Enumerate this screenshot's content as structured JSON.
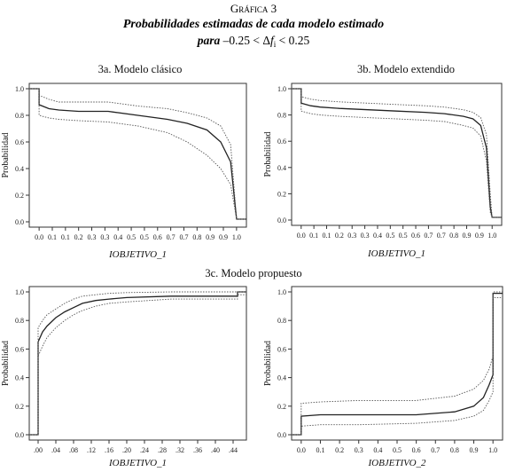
{
  "figure": {
    "label_main": "Gráfica",
    "label_num": "3",
    "subtitle": "Probabilidades estimadas de cada modelo estimado",
    "condition_italic": "para",
    "condition_rest_a": " –0.25 < Δ",
    "condition_f": "f",
    "condition_sub": "i",
    "condition_rest_b": " < 0.25",
    "section_c_title": "3c. Modelo propuesto"
  },
  "chart_data": [
    {
      "id": "3a",
      "type": "line",
      "title": "3a. Modelo clásico",
      "xlabel": "IOBJETIVO_1",
      "ylabel": "Probabilidad",
      "x_ticks": [
        "0.0",
        "0.1",
        "0.1",
        "0.2",
        "0.3",
        "0.3",
        "0.4",
        "0.5",
        "0.5",
        "0.6",
        "0.7",
        "0.7",
        "0.8",
        "0.9",
        "0.9",
        "1.0"
      ],
      "y_ticks": [
        "0.0",
        "0.2",
        "0.4",
        "0.6",
        "0.8",
        "1.0"
      ],
      "xlim": [
        -0.05,
        1.05
      ],
      "ylim": [
        0,
        1
      ],
      "series": [
        {
          "style": "solid",
          "points": [
            [
              -0.05,
              1.0
            ],
            [
              0.0,
              1.0
            ],
            [
              0.0,
              0.88
            ],
            [
              0.05,
              0.85
            ],
            [
              0.1,
              0.84
            ],
            [
              0.2,
              0.83
            ],
            [
              0.35,
              0.83
            ],
            [
              0.5,
              0.8
            ],
            [
              0.65,
              0.77
            ],
            [
              0.75,
              0.74
            ],
            [
              0.85,
              0.69
            ],
            [
              0.92,
              0.6
            ],
            [
              0.97,
              0.45
            ],
            [
              1.0,
              0.02
            ],
            [
              1.05,
              0.02
            ]
          ]
        },
        {
          "style": "dotted",
          "points": [
            [
              -0.05,
              1.0
            ],
            [
              0.0,
              1.0
            ],
            [
              0.0,
              0.95
            ],
            [
              0.05,
              0.92
            ],
            [
              0.1,
              0.9
            ],
            [
              0.2,
              0.9
            ],
            [
              0.35,
              0.9
            ],
            [
              0.5,
              0.87
            ],
            [
              0.65,
              0.85
            ],
            [
              0.75,
              0.82
            ],
            [
              0.85,
              0.78
            ],
            [
              0.92,
              0.72
            ],
            [
              0.97,
              0.58
            ],
            [
              1.0,
              0.02
            ],
            [
              1.05,
              0.02
            ]
          ]
        },
        {
          "style": "dotted",
          "points": [
            [
              -0.05,
              1.0
            ],
            [
              0.0,
              1.0
            ],
            [
              0.0,
              0.8
            ],
            [
              0.05,
              0.78
            ],
            [
              0.1,
              0.77
            ],
            [
              0.2,
              0.76
            ],
            [
              0.35,
              0.75
            ],
            [
              0.5,
              0.72
            ],
            [
              0.65,
              0.67
            ],
            [
              0.75,
              0.6
            ],
            [
              0.85,
              0.5
            ],
            [
              0.92,
              0.4
            ],
            [
              0.97,
              0.28
            ],
            [
              1.0,
              0.02
            ],
            [
              1.05,
              0.02
            ]
          ]
        }
      ]
    },
    {
      "id": "3b",
      "type": "line",
      "title": "3b. Modelo extendido",
      "xlabel": "IOBJETIVO_1",
      "ylabel": "Probabilidad",
      "x_ticks": [
        "0.0",
        "0.1",
        "0.1",
        "0.2",
        "0.3",
        "0.3",
        "0.4",
        "0.5",
        "0.5",
        "0.6",
        "0.7",
        "0.7",
        "0.8",
        "0.9",
        "0.9",
        "1.0"
      ],
      "y_ticks": [
        "0.0",
        "0.2",
        "0.4",
        "0.6",
        "0.8",
        "1.0"
      ],
      "xlim": [
        -0.05,
        1.05
      ],
      "ylim": [
        0,
        1
      ],
      "series": [
        {
          "style": "solid",
          "points": [
            [
              -0.05,
              1.0
            ],
            [
              0.0,
              1.0
            ],
            [
              0.0,
              0.89
            ],
            [
              0.05,
              0.87
            ],
            [
              0.1,
              0.86
            ],
            [
              0.2,
              0.85
            ],
            [
              0.35,
              0.84
            ],
            [
              0.5,
              0.83
            ],
            [
              0.65,
              0.82
            ],
            [
              0.75,
              0.81
            ],
            [
              0.85,
              0.79
            ],
            [
              0.9,
              0.77
            ],
            [
              0.94,
              0.72
            ],
            [
              0.97,
              0.55
            ],
            [
              0.99,
              0.1
            ],
            [
              1.0,
              0.02
            ],
            [
              1.05,
              0.02
            ]
          ]
        },
        {
          "style": "dotted",
          "points": [
            [
              -0.05,
              1.0
            ],
            [
              0.0,
              1.0
            ],
            [
              0.0,
              0.94
            ],
            [
              0.05,
              0.92
            ],
            [
              0.1,
              0.91
            ],
            [
              0.2,
              0.9
            ],
            [
              0.35,
              0.89
            ],
            [
              0.5,
              0.88
            ],
            [
              0.65,
              0.87
            ],
            [
              0.75,
              0.86
            ],
            [
              0.85,
              0.84
            ],
            [
              0.9,
              0.82
            ],
            [
              0.94,
              0.78
            ],
            [
              0.97,
              0.65
            ],
            [
              0.99,
              0.2
            ],
            [
              1.0,
              0.02
            ],
            [
              1.05,
              0.02
            ]
          ]
        },
        {
          "style": "dotted",
          "points": [
            [
              -0.05,
              1.0
            ],
            [
              0.0,
              1.0
            ],
            [
              0.0,
              0.83
            ],
            [
              0.05,
              0.81
            ],
            [
              0.1,
              0.8
            ],
            [
              0.2,
              0.79
            ],
            [
              0.35,
              0.78
            ],
            [
              0.5,
              0.77
            ],
            [
              0.65,
              0.76
            ],
            [
              0.75,
              0.75
            ],
            [
              0.85,
              0.72
            ],
            [
              0.9,
              0.7
            ],
            [
              0.94,
              0.64
            ],
            [
              0.97,
              0.45
            ],
            [
              0.99,
              0.06
            ],
            [
              1.0,
              0.02
            ],
            [
              1.05,
              0.02
            ]
          ]
        }
      ]
    },
    {
      "id": "3c-left",
      "type": "line",
      "title": "",
      "xlabel": "IOBJETIVO_1",
      "ylabel": "Probabilidad",
      "x_ticks": [
        ".00",
        ".04",
        ".08",
        ".12",
        ".16",
        ".20",
        ".24",
        ".28",
        ".32",
        ".36",
        ".40",
        ".44"
      ],
      "y_ticks": [
        "0.0",
        "0.2",
        "0.4",
        "0.6",
        "0.8",
        "1.0"
      ],
      "xlim": [
        -0.02,
        0.47
      ],
      "ylim": [
        0,
        1
      ],
      "series": [
        {
          "style": "solid",
          "points": [
            [
              -0.02,
              0.0
            ],
            [
              0.0,
              0.0
            ],
            [
              0.0,
              0.65
            ],
            [
              0.01,
              0.72
            ],
            [
              0.02,
              0.76
            ],
            [
              0.04,
              0.82
            ],
            [
              0.06,
              0.86
            ],
            [
              0.08,
              0.89
            ],
            [
              0.1,
              0.92
            ],
            [
              0.13,
              0.94
            ],
            [
              0.16,
              0.95
            ],
            [
              0.2,
              0.96
            ],
            [
              0.3,
              0.97
            ],
            [
              0.45,
              0.97
            ],
            [
              0.45,
              1.0
            ],
            [
              0.47,
              1.0
            ]
          ]
        },
        {
          "style": "dotted",
          "points": [
            [
              -0.02,
              0.0
            ],
            [
              0.0,
              0.0
            ],
            [
              0.0,
              0.75
            ],
            [
              0.01,
              0.8
            ],
            [
              0.02,
              0.84
            ],
            [
              0.04,
              0.88
            ],
            [
              0.06,
              0.92
            ],
            [
              0.08,
              0.95
            ],
            [
              0.1,
              0.97
            ],
            [
              0.13,
              0.98
            ],
            [
              0.16,
              0.99
            ],
            [
              0.2,
              0.995
            ],
            [
              0.3,
              1.0
            ],
            [
              0.47,
              1.0
            ]
          ]
        },
        {
          "style": "dotted",
          "points": [
            [
              -0.02,
              0.0
            ],
            [
              0.0,
              0.0
            ],
            [
              0.0,
              0.55
            ],
            [
              0.01,
              0.62
            ],
            [
              0.02,
              0.68
            ],
            [
              0.04,
              0.75
            ],
            [
              0.06,
              0.8
            ],
            [
              0.08,
              0.84
            ],
            [
              0.1,
              0.87
            ],
            [
              0.13,
              0.9
            ],
            [
              0.16,
              0.92
            ],
            [
              0.2,
              0.93
            ],
            [
              0.3,
              0.95
            ],
            [
              0.45,
              0.95
            ],
            [
              0.45,
              0.98
            ],
            [
              0.47,
              0.98
            ]
          ]
        }
      ]
    },
    {
      "id": "3c-right",
      "type": "line",
      "title": "",
      "xlabel": "IOBJETIVO_2",
      "ylabel": "Probabilidad",
      "x_ticks": [
        "0.0",
        "0.1",
        "0.2",
        "0.3",
        "0.4",
        "0.5",
        "0.6",
        "0.7",
        "0.8",
        "0.9",
        "1.0"
      ],
      "y_ticks": [
        "0.0",
        "0.2",
        "0.4",
        "0.6",
        "0.8",
        "1.0"
      ],
      "xlim": [
        -0.05,
        1.05
      ],
      "ylim": [
        0,
        1
      ],
      "series": [
        {
          "style": "solid",
          "points": [
            [
              -0.05,
              0.0
            ],
            [
              0.0,
              0.0
            ],
            [
              0.0,
              0.13
            ],
            [
              0.1,
              0.14
            ],
            [
              0.3,
              0.14
            ],
            [
              0.6,
              0.14
            ],
            [
              0.8,
              0.16
            ],
            [
              0.9,
              0.2
            ],
            [
              0.95,
              0.26
            ],
            [
              0.98,
              0.35
            ],
            [
              1.0,
              0.42
            ],
            [
              1.0,
              0.99
            ],
            [
              1.05,
              0.99
            ]
          ]
        },
        {
          "style": "dotted",
          "points": [
            [
              -0.05,
              0.0
            ],
            [
              0.0,
              0.0
            ],
            [
              0.0,
              0.22
            ],
            [
              0.1,
              0.23
            ],
            [
              0.3,
              0.24
            ],
            [
              0.6,
              0.24
            ],
            [
              0.8,
              0.27
            ],
            [
              0.9,
              0.32
            ],
            [
              0.95,
              0.38
            ],
            [
              0.98,
              0.46
            ],
            [
              1.0,
              0.55
            ],
            [
              1.0,
              1.0
            ],
            [
              1.05,
              1.0
            ]
          ]
        },
        {
          "style": "dotted",
          "points": [
            [
              -0.05,
              0.0
            ],
            [
              0.0,
              0.0
            ],
            [
              0.0,
              0.06
            ],
            [
              0.1,
              0.07
            ],
            [
              0.3,
              0.07
            ],
            [
              0.6,
              0.08
            ],
            [
              0.8,
              0.1
            ],
            [
              0.9,
              0.13
            ],
            [
              0.95,
              0.17
            ],
            [
              0.98,
              0.24
            ],
            [
              1.0,
              0.3
            ],
            [
              1.0,
              0.96
            ],
            [
              1.05,
              0.96
            ]
          ]
        }
      ]
    }
  ]
}
